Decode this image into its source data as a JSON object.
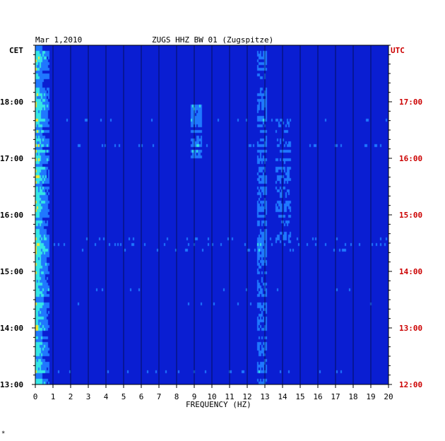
{
  "chart_data": {
    "type": "heatmap",
    "title": "ZUGS HHZ BW 01 (Zugspitze)",
    "date": "Mar 1,2010",
    "xlabel": "FREQUENCY (HZ)",
    "xlim": [
      0,
      20
    ],
    "x_ticks": [
      "0",
      "1",
      "2",
      "3",
      "4",
      "5",
      "6",
      "7",
      "8",
      "9",
      "10",
      "11",
      "12",
      "13",
      "14",
      "15",
      "16",
      "17",
      "18",
      "19",
      "20"
    ],
    "left_axis": {
      "label": "CET",
      "ticks": [
        {
          "hour": 13,
          "text": "13:00"
        },
        {
          "hour": 14,
          "text": "14:00"
        },
        {
          "hour": 15,
          "text": "15:00"
        },
        {
          "hour": 16,
          "text": "16:00"
        },
        {
          "hour": 17,
          "text": "17:00"
        },
        {
          "hour": 18,
          "text": "18:00"
        }
      ],
      "range": [
        13.0,
        19.0
      ]
    },
    "right_axis": {
      "label": "UTC",
      "ticks": [
        {
          "hour": 12,
          "text": "12:00"
        },
        {
          "hour": 13,
          "text": "13:00"
        },
        {
          "hour": 14,
          "text": "14:00"
        },
        {
          "hour": 15,
          "text": "15:00"
        },
        {
          "hour": 16,
          "text": "16:00"
        },
        {
          "hour": 17,
          "text": "17:00"
        }
      ],
      "range": [
        12.0,
        18.0
      ]
    },
    "colors": {
      "background": "#0a1ed2",
      "low": "#0814a8",
      "mid": "#1f78ff",
      "cyan": "#33e6e6",
      "yellow": "#f0e830",
      "red": "#e02020",
      "grid": "#000000",
      "utc_text": "#cc0000"
    },
    "grid": true,
    "footnote": "*"
  }
}
